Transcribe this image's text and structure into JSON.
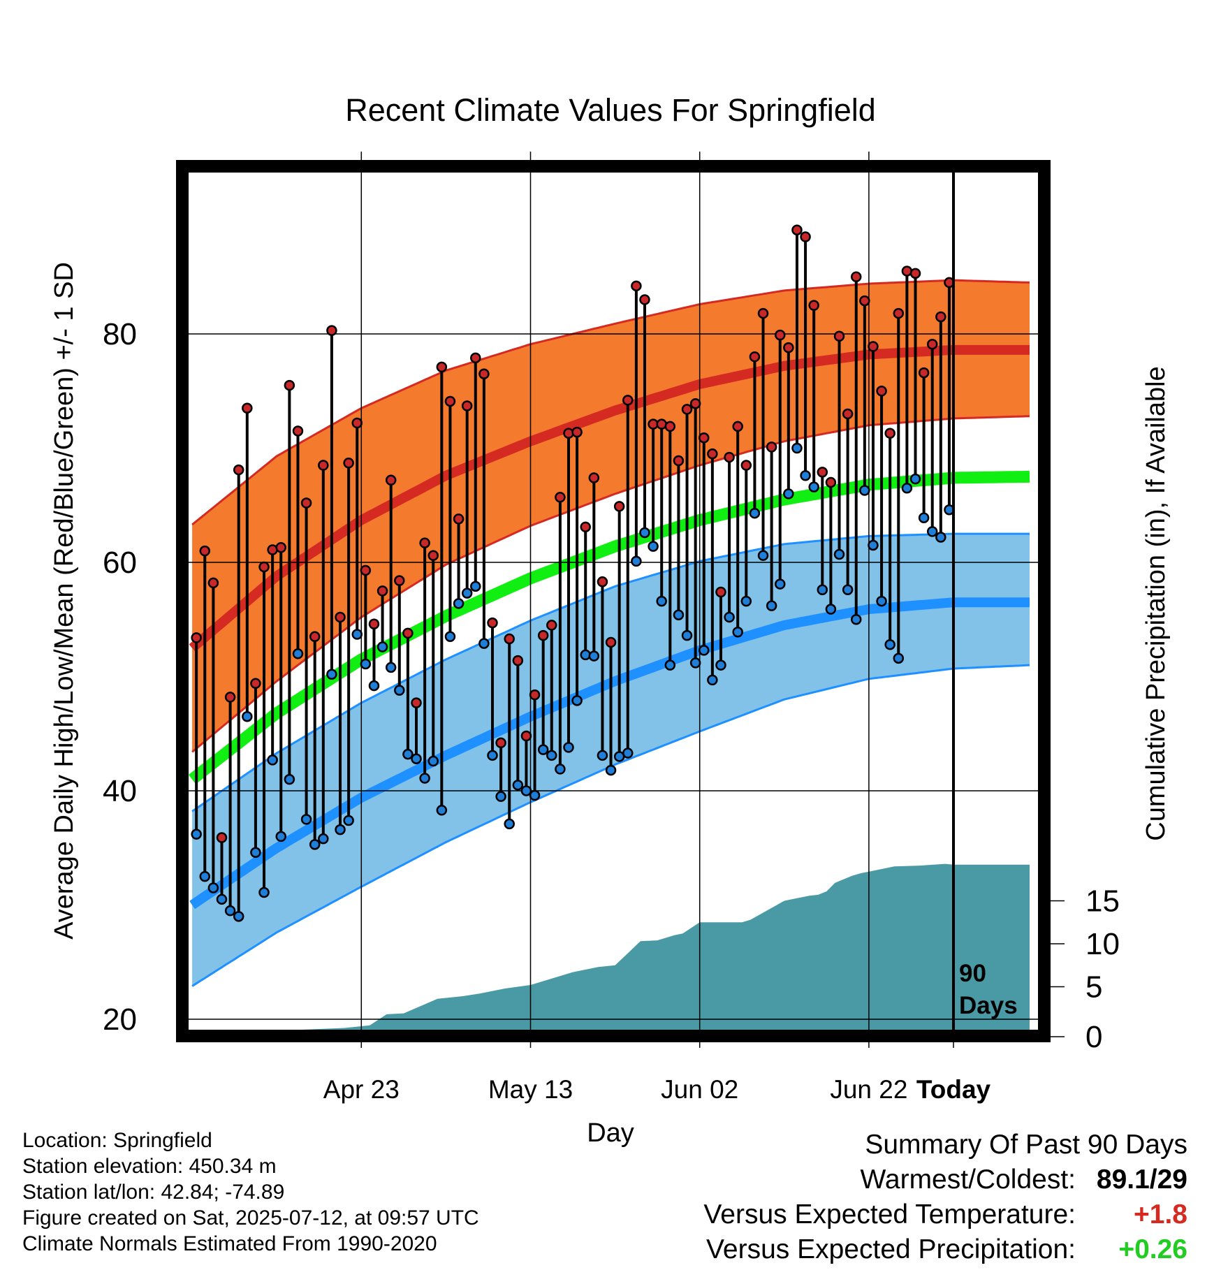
{
  "chart_data": {
    "type": "line",
    "title": "Recent Climate Values For Springfield",
    "xlabel": "Day",
    "ylabel_left": "Average Daily High/Low/Mean (Red/Blue/Green) +/- 1 SD",
    "ylabel_right": "Cumulative Precipitation (in), If Available",
    "x_ticks": [
      "Apr 23",
      "May 13",
      "Jun 02",
      "Jun 22",
      "Today"
    ],
    "y_left_ticks": [
      "20",
      "40",
      "60",
      "80"
    ],
    "y_right_ticks": [
      "0",
      "5",
      "10",
      "15"
    ],
    "ylim_left": [
      19.5,
      94.5
    ],
    "ylim_right": [
      0,
      30
    ],
    "x_range_days": [
      -90,
      9
    ],
    "grid": true,
    "today_marker_label": [
      "90",
      "Days"
    ],
    "colors": {
      "high_band": "#f47a2e",
      "high_line": "#d42a22",
      "low_band": "#82c2e8",
      "low_line": "#1e90ff",
      "mean_line": "#11ee11",
      "precip": "#4a9aa5",
      "high_dot": "#c8282a",
      "low_dot": "#1f7fd8",
      "positive_temp": "#d42a22",
      "positive_precip": "#22cc22"
    },
    "normals": {
      "days": [
        -90,
        -80,
        -70,
        -60,
        -50,
        -40,
        -30,
        -20,
        -10,
        0,
        9
      ],
      "high_mean": [
        52.5,
        58.8,
        63.7,
        67.6,
        70.6,
        73.3,
        75.6,
        77.2,
        78.2,
        78.6,
        78.6
      ],
      "high_upper": [
        63.3,
        69.3,
        73.5,
        76.8,
        79.1,
        80.9,
        82.6,
        83.8,
        84.4,
        84.7,
        84.5
      ],
      "high_lower": [
        43.4,
        49.6,
        55.2,
        59.8,
        63.2,
        66.0,
        68.5,
        70.6,
        72.0,
        72.6,
        72.8
      ],
      "mean_mean": [
        41.0,
        46.8,
        51.5,
        55.3,
        58.6,
        61.4,
        63.7,
        65.5,
        66.8,
        67.4,
        67.5
      ],
      "low_mean": [
        30.0,
        35.0,
        39.4,
        43.1,
        46.5,
        49.6,
        52.3,
        54.5,
        55.9,
        56.5,
        56.5
      ],
      "low_upper": [
        38.2,
        43.3,
        47.7,
        51.5,
        54.9,
        57.9,
        60.1,
        61.6,
        62.3,
        62.5,
        62.5
      ],
      "low_lower": [
        22.9,
        27.6,
        31.6,
        35.5,
        39.0,
        42.3,
        45.2,
        48.0,
        49.8,
        50.7,
        51.0
      ]
    },
    "series": [
      {
        "name": "High",
        "values": [
          53.4,
          61.0,
          58.2,
          35.9,
          48.2,
          68.1,
          73.5,
          49.4,
          59.6,
          61.1,
          61.3,
          75.5,
          71.5,
          65.2,
          53.5,
          68.5,
          80.3,
          55.2,
          68.7,
          72.2,
          59.3,
          54.6,
          57.5,
          67.2,
          58.4,
          53.8,
          47.7,
          61.7,
          60.6,
          77.1,
          74.1,
          63.8,
          73.7,
          77.9,
          76.5,
          54.7,
          44.2,
          53.3,
          51.4,
          44.8,
          48.4,
          53.6,
          54.5,
          65.7,
          71.3,
          71.4,
          63.1,
          67.4,
          58.3,
          53.0,
          64.9,
          74.2,
          84.2,
          83.0,
          72.1,
          72.1,
          71.9,
          68.9,
          73.4,
          73.9,
          70.9,
          69.5,
          57.4,
          69.2,
          71.9,
          68.5,
          78.0,
          81.8,
          70.1,
          79.9,
          78.8,
          89.1,
          88.5,
          82.5,
          67.9,
          67.0,
          79.8,
          73.0,
          85.0,
          82.9,
          78.9,
          75.0,
          71.3,
          81.8,
          85.5,
          85.3,
          76.6,
          79.1,
          81.5,
          84.5
        ]
      },
      {
        "name": "Low",
        "values": [
          36.2,
          32.5,
          31.5,
          30.5,
          29.5,
          29.0,
          46.5,
          34.6,
          31.1,
          42.7,
          36.0,
          41.0,
          52.0,
          37.5,
          35.3,
          35.8,
          50.2,
          36.6,
          37.4,
          53.7,
          51.1,
          49.2,
          52.6,
          50.8,
          48.8,
          43.2,
          42.8,
          41.1,
          42.6,
          38.3,
          53.5,
          56.4,
          57.3,
          57.9,
          52.9,
          43.1,
          39.5,
          37.1,
          40.5,
          40.0,
          39.6,
          43.6,
          43.1,
          41.9,
          43.8,
          47.9,
          51.9,
          51.8,
          43.1,
          41.8,
          43.0,
          43.3,
          60.1,
          62.6,
          61.4,
          56.6,
          51.0,
          55.4,
          53.6,
          51.2,
          52.3,
          49.7,
          51.0,
          55.2,
          53.9,
          56.6,
          64.3,
          60.6,
          56.2,
          58.1,
          66.0,
          70.0,
          67.6,
          66.6,
          57.6,
          55.9,
          60.7,
          57.6,
          55.0,
          66.3,
          61.5,
          56.6,
          52.8,
          51.6,
          66.5,
          67.3,
          63.9,
          62.7,
          62.2,
          64.6
        ]
      }
    ],
    "precip_cumulative": {
      "days": [
        -90,
        -77,
        -72,
        -69,
        -67,
        -65,
        -61,
        -58,
        -56,
        -53,
        -50,
        -45,
        -42,
        -40,
        -37,
        -35,
        -33,
        -32,
        -30,
        -25,
        -24,
        -20,
        -17,
        -16,
        -15,
        -14,
        -12,
        -11,
        -10,
        -9,
        -8,
        -7,
        -4,
        -1,
        0,
        9
      ],
      "values": [
        0,
        0,
        0.2,
        0.5,
        1.8,
        1.9,
        3.6,
        3.9,
        4.2,
        4.8,
        5.2,
        6.7,
        7.3,
        7.5,
        10.3,
        10.4,
        11.0,
        11.2,
        12.5,
        12.5,
        12.8,
        15.0,
        15.6,
        15.7,
        16.1,
        17.1,
        17.9,
        18.2,
        18.4,
        18.6,
        18.8,
        19.0,
        19.1,
        19.3,
        19.2,
        19.2
      ]
    }
  },
  "info": {
    "location": "Location: Springfield",
    "elevation": "Station elevation: 450.34 m",
    "latlon": "Station lat/lon: 42.84; -74.89",
    "created": "Figure created on Sat, 2025-07-12, at 09:57 UTC",
    "normals": "Climate Normals Estimated From 1990-2020"
  },
  "summary": {
    "title": "Summary Of Past 90 Days",
    "warmest_label": "Warmest/Coldest:",
    "warmest_value": "89.1/29",
    "temp_label": "Versus Expected Temperature:",
    "temp_value": "+1.8",
    "precip_label": "Versus Expected Precipitation:",
    "precip_value": "+0.26"
  }
}
